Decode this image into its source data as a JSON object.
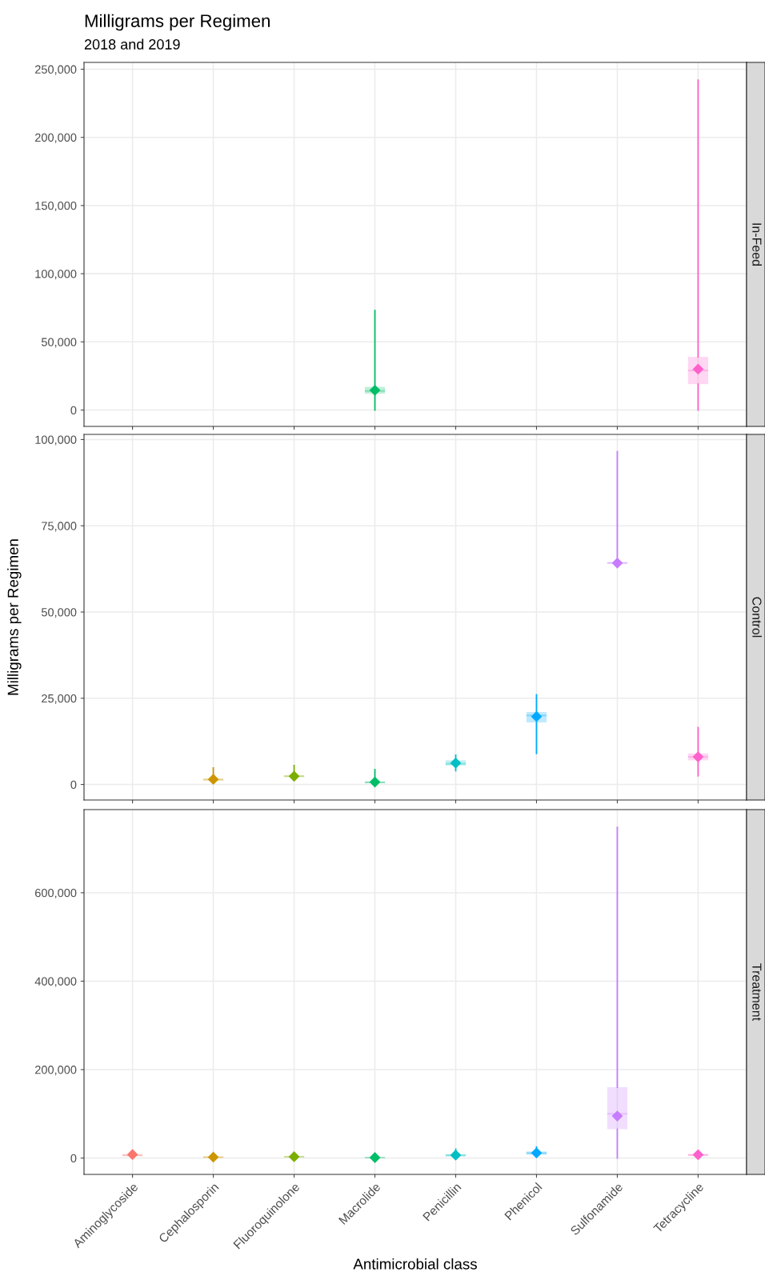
{
  "chart_data": [
    {
      "type": "box",
      "title": "Milligrams per Regimen",
      "subtitle": "2018 and 2019",
      "y2label": "In-Feed",
      "tick_labels": "y",
      "grid": true,
      "marker": "diamond",
      "categories": [
        null,
        null,
        null,
        null,
        null,
        null,
        null,
        null
      ],
      "colors": [
        "#f8766d",
        "#cd9600",
        "#7cae00",
        "#00be67",
        "#00bfc4",
        "#00a9ff",
        "#c77cff",
        "#ff61cc"
      ],
      "ylim": [
        -12000,
        255000
      ],
      "yticks": [
        {
          "value": 0,
          "label": "0"
        },
        {
          "value": 50000,
          "label": "50,000"
        },
        {
          "value": 100000,
          "label": "100,000"
        },
        {
          "value": 150000,
          "label": "150,000"
        },
        {
          "value": 200000,
          "label": "200,000"
        },
        {
          "value": 250000,
          "label": "250,000"
        }
      ],
      "boxes": [
        null,
        null,
        null,
        {
          "low": 0,
          "q1": 12000,
          "median": 14000,
          "q3": 17000,
          "high": 73000,
          "mean": 14500
        },
        null,
        null,
        null,
        {
          "low": 0,
          "q1": 19000,
          "median": 29000,
          "q3": 39000,
          "high": 242000,
          "mean": 30000
        }
      ]
    },
    {
      "type": "box",
      "ylabel": "Milligrams per Regimen",
      "y2label": "Control",
      "tick_labels": "y",
      "grid": true,
      "marker": "diamond",
      "categories": [
        null,
        null,
        null,
        null,
        null,
        null,
        null,
        null
      ],
      "colors": [
        "#f8766d",
        "#cd9600",
        "#7cae00",
        "#00be67",
        "#00bfc4",
        "#00a9ff",
        "#c77cff",
        "#ff61cc"
      ],
      "ylim": [
        -4500,
        101500
      ],
      "yticks": [
        {
          "value": 0,
          "label": "0"
        },
        {
          "value": 25000,
          "label": "25,000"
        },
        {
          "value": 50000,
          "label": "50,000"
        },
        {
          "value": 75000,
          "label": "75,000"
        },
        {
          "value": 100000,
          "label": "100,000"
        }
      ],
      "boxes": [
        null,
        {
          "low": 800,
          "q1": 1200,
          "median": 1400,
          "q3": 1700,
          "high": 4800,
          "mean": 1500
        },
        {
          "low": 1500,
          "q1": 2200,
          "median": 2400,
          "q3": 2600,
          "high": 5500,
          "mean": 2400
        },
        {
          "low": 200,
          "q1": 400,
          "median": 600,
          "q3": 900,
          "high": 4300,
          "mean": 700
        },
        {
          "low": 4000,
          "q1": 5500,
          "median": 6000,
          "q3": 7000,
          "high": 8500,
          "mean": 6200
        },
        {
          "low": 9000,
          "q1": 18000,
          "median": 20000,
          "q3": 21000,
          "high": 26000,
          "mean": 19700
        },
        {
          "low": 63500,
          "q1": 64000,
          "median": 64200,
          "q3": 64500,
          "high": 96500,
          "mean": 64200
        },
        {
          "low": 2500,
          "q1": 7000,
          "median": 8000,
          "q3": 9000,
          "high": 16500,
          "mean": 8000
        }
      ]
    },
    {
      "type": "box",
      "xlabel": "Antimicrobial class",
      "y2label": "Treatment",
      "grid": true,
      "marker": "diamond",
      "categories": [
        "Aminoglycoside",
        "Cephalosporin",
        "Fluoroquinolone",
        "Macrolide",
        "Penicillin",
        "Phenicol",
        "Sulfonamide",
        "Tetracycline"
      ],
      "colors": [
        "#f8766d",
        "#cd9600",
        "#7cae00",
        "#00be67",
        "#00bfc4",
        "#00a9ff",
        "#c77cff",
        "#ff61cc"
      ],
      "ylim": [
        -37000,
        788000
      ],
      "yticks": [
        {
          "value": 0,
          "label": "0"
        },
        {
          "value": 200000,
          "label": "200,000"
        },
        {
          "value": 400000,
          "label": "400,000"
        },
        {
          "value": 600000,
          "label": "600,000"
        }
      ],
      "boxes": [
        {
          "low": 3000,
          "q1": 5000,
          "median": 6000,
          "q3": 9000,
          "high": 15000,
          "mean": 8000
        },
        {
          "low": 0,
          "q1": 1000,
          "median": 2000,
          "q3": 3000,
          "high": 5000,
          "mean": 2000
        },
        {
          "low": 0,
          "q1": 2000,
          "median": 3000,
          "q3": 4000,
          "high": 8000,
          "mean": 3000
        },
        {
          "low": 0,
          "q1": 500,
          "median": 1000,
          "q3": 1500,
          "high": 3000,
          "mean": 1000
        },
        {
          "low": 2000,
          "q1": 4000,
          "median": 6000,
          "q3": 9000,
          "high": 20000,
          "mean": 6500
        },
        {
          "low": 3000,
          "q1": 8000,
          "median": 11000,
          "q3": 15000,
          "high": 25000,
          "mean": 11500
        },
        {
          "low": 0,
          "q1": 65000,
          "median": 100000,
          "q3": 160000,
          "high": 748000,
          "mean": 95000
        },
        {
          "low": 2000,
          "q1": 5000,
          "median": 7000,
          "q3": 9000,
          "high": 15000,
          "mean": 7500
        }
      ]
    }
  ]
}
